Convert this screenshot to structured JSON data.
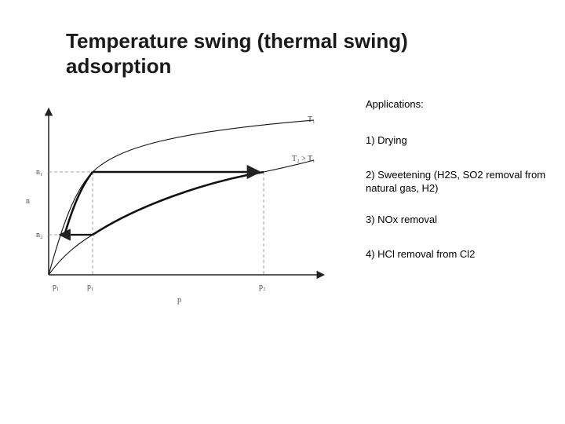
{
  "slide": {
    "title": "Temperature swing (thermal swing) adsorption"
  },
  "applications": {
    "heading": "Applications:",
    "items": [
      "1) Drying",
      "2) Sweetening (H2S, SO2 removal from natural gas, H2)",
      "3) NOx removal",
      "4) HCl removal from Cl2"
    ]
  },
  "diagram": {
    "x_axis_label": "p",
    "y_axis_label": "n",
    "isotherm_low_label": "T₁",
    "isotherm_high_label": "T₂ > T₁",
    "y_ticks": [
      "n₁",
      "n₂"
    ],
    "x_ticks": [
      "p₁",
      "p₁",
      "p₂"
    ]
  }
}
